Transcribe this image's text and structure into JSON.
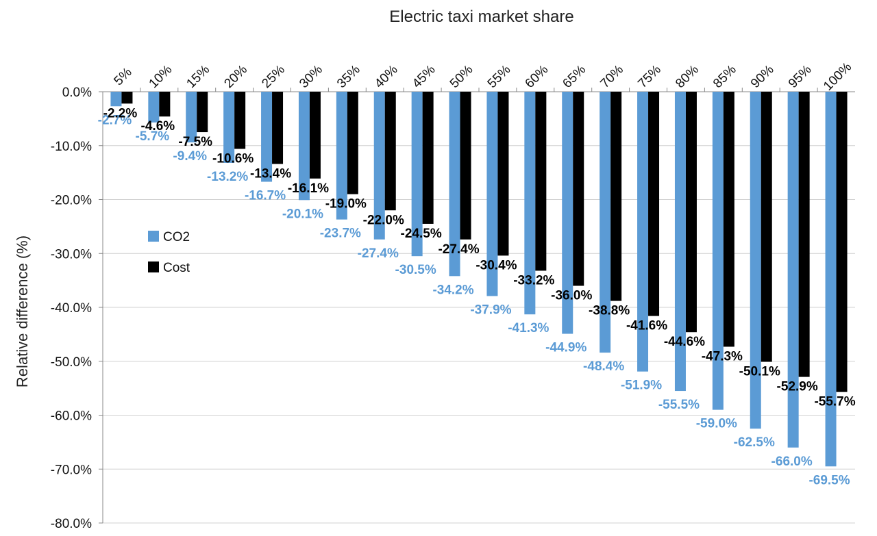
{
  "chart_data": {
    "type": "bar",
    "title": "",
    "xlabel": "Electric taxi market share",
    "ylabel": "Relative difference (%)",
    "ylim": [
      -80,
      0
    ],
    "yticks": [
      "0.0%",
      "-10.0%",
      "-20.0%",
      "-30.0%",
      "-40.0%",
      "-50.0%",
      "-60.0%",
      "-70.0%",
      "-80.0%"
    ],
    "x_axis_position": "top",
    "grid": true,
    "legend_position": "left-middle",
    "categories": [
      "5%",
      "10%",
      "15%",
      "20%",
      "25%",
      "30%",
      "35%",
      "40%",
      "45%",
      "50%",
      "55%",
      "60%",
      "65%",
      "70%",
      "75%",
      "80%",
      "85%",
      "90%",
      "95%",
      "100%"
    ],
    "series": [
      {
        "name": "CO2",
        "color": "#5b9bd5",
        "values": [
          -2.7,
          -5.7,
          -9.4,
          -13.2,
          -16.7,
          -20.1,
          -23.7,
          -27.4,
          -30.5,
          -34.2,
          -37.9,
          -41.3,
          -44.9,
          -48.4,
          -51.9,
          -55.5,
          -59.0,
          -62.5,
          -66.0,
          -69.5
        ],
        "labels": [
          "-2.7%",
          "-5.7%",
          "-9.4%",
          "-13.2%",
          "-16.7%",
          "-20.1%",
          "-23.7%",
          "-27.4%",
          "-30.5%",
          "-34.2%",
          "-37.9%",
          "-41.3%",
          "-44.9%",
          "-48.4%",
          "-51.9%",
          "-55.5%",
          "-59.0%",
          "-62.5%",
          "-66.0%",
          "-69.5%"
        ]
      },
      {
        "name": "Cost",
        "color": "#000000",
        "values": [
          -2.2,
          -4.6,
          -7.5,
          -10.6,
          -13.4,
          -16.1,
          -19.0,
          -22.0,
          -24.5,
          -27.4,
          -30.4,
          -33.2,
          -36.0,
          -38.8,
          -41.6,
          -44.6,
          -47.3,
          -50.1,
          -52.9,
          -55.7
        ],
        "labels": [
          "-2.2%",
          "-4.6%",
          "-7.5%",
          "-10.6%",
          "-13.4%",
          "-16.1%",
          "-19.0%",
          "-22.0%",
          "-24.5%",
          "-27.4%",
          "-30.4%",
          "-33.2%",
          "-36.0%",
          "-38.8%",
          "-41.6%",
          "-44.6%",
          "-47.3%",
          "-50.1%",
          "-52.9%",
          "-55.7%"
        ]
      }
    ]
  }
}
